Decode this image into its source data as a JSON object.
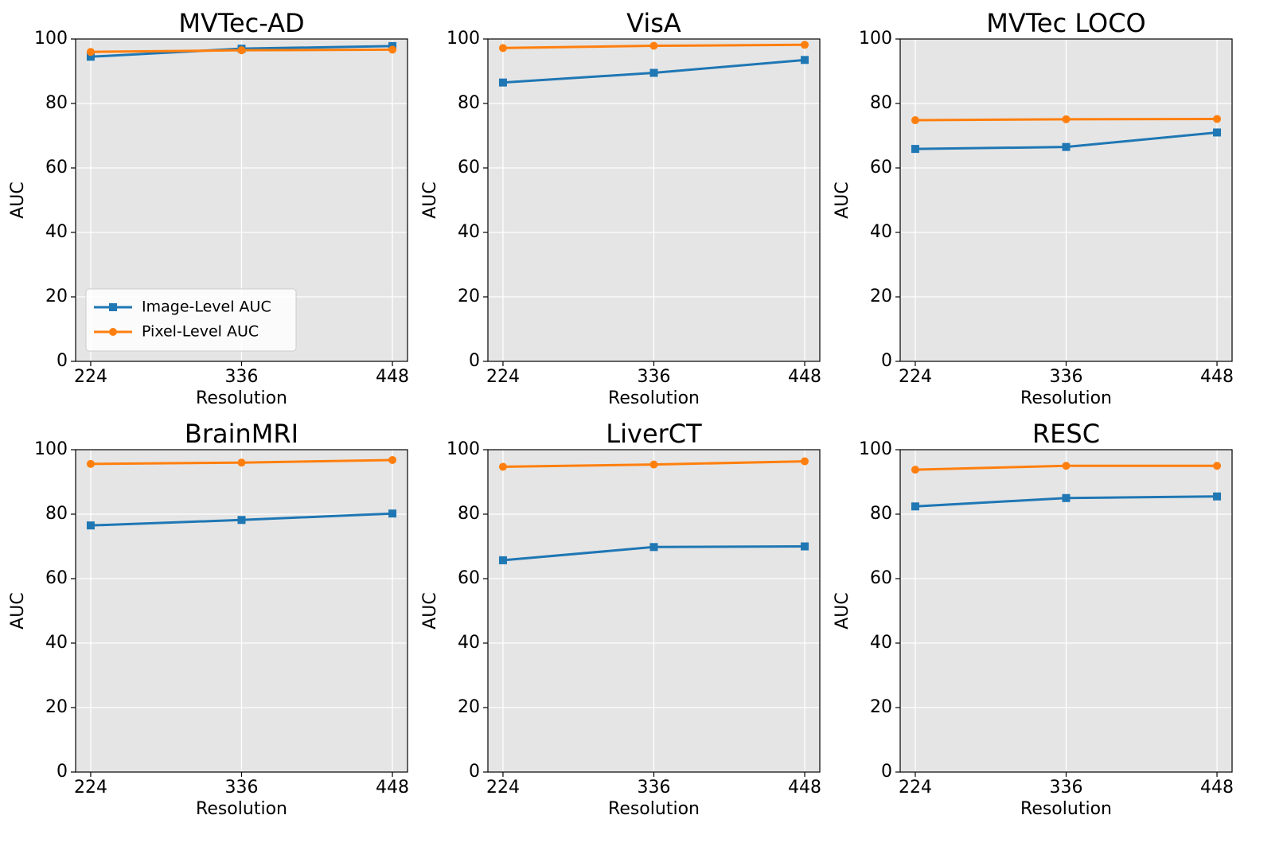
{
  "chart_data": [
    {
      "type": "line",
      "title": "MVTec-AD",
      "xlabel": "Resolution",
      "ylabel": "AUC",
      "x": [
        224,
        336,
        448
      ],
      "xlim": [
        212.8,
        459.2
      ],
      "xticks": [
        224,
        336,
        448
      ],
      "ylim": [
        0,
        100
      ],
      "yticks": [
        0,
        20,
        40,
        60,
        80,
        100
      ],
      "grid": true,
      "legend": "lower left",
      "series": [
        {
          "name": "Image-Level AUC",
          "color": "#1f77b4",
          "marker": "square",
          "values": [
            94.5,
            97.0,
            97.8
          ]
        },
        {
          "name": "Pixel-Level AUC",
          "color": "#ff7f0e",
          "marker": "circle",
          "values": [
            96.0,
            96.5,
            96.7
          ]
        }
      ]
    },
    {
      "type": "line",
      "title": "VisA",
      "xlabel": "Resolution",
      "ylabel": "AUC",
      "x": [
        224,
        336,
        448
      ],
      "xlim": [
        212.8,
        459.2
      ],
      "xticks": [
        224,
        336,
        448
      ],
      "ylim": [
        0,
        100
      ],
      "yticks": [
        0,
        20,
        40,
        60,
        80,
        100
      ],
      "grid": true,
      "series": [
        {
          "color": "#1f77b4",
          "marker": "square",
          "values": [
            86.5,
            89.5,
            93.5
          ]
        },
        {
          "color": "#ff7f0e",
          "marker": "circle",
          "values": [
            97.2,
            97.9,
            98.2
          ]
        }
      ]
    },
    {
      "type": "line",
      "title": "MVTec LOCO",
      "xlabel": "Resolution",
      "ylabel": "AUC",
      "x": [
        224,
        336,
        448
      ],
      "xlim": [
        212.8,
        459.2
      ],
      "xticks": [
        224,
        336,
        448
      ],
      "ylim": [
        0,
        100
      ],
      "yticks": [
        0,
        20,
        40,
        60,
        80,
        100
      ],
      "grid": true,
      "series": [
        {
          "color": "#1f77b4",
          "marker": "square",
          "values": [
            65.9,
            66.5,
            71.0
          ]
        },
        {
          "color": "#ff7f0e",
          "marker": "circle",
          "values": [
            74.8,
            75.1,
            75.2
          ]
        }
      ]
    },
    {
      "type": "line",
      "title": "BrainMRI",
      "xlabel": "Resolution",
      "ylabel": "AUC",
      "x": [
        224,
        336,
        448
      ],
      "xlim": [
        212.8,
        459.2
      ],
      "xticks": [
        224,
        336,
        448
      ],
      "ylim": [
        0,
        100
      ],
      "yticks": [
        0,
        20,
        40,
        60,
        80,
        100
      ],
      "grid": true,
      "series": [
        {
          "color": "#1f77b4",
          "marker": "square",
          "values": [
            76.5,
            78.2,
            80.2
          ]
        },
        {
          "color": "#ff7f0e",
          "marker": "circle",
          "values": [
            95.6,
            96.0,
            96.8
          ]
        }
      ]
    },
    {
      "type": "line",
      "title": "LiverCT",
      "xlabel": "Resolution",
      "ylabel": "AUC",
      "x": [
        224,
        336,
        448
      ],
      "xlim": [
        212.8,
        459.2
      ],
      "xticks": [
        224,
        336,
        448
      ],
      "ylim": [
        0,
        100
      ],
      "yticks": [
        0,
        20,
        40,
        60,
        80,
        100
      ],
      "grid": true,
      "series": [
        {
          "color": "#1f77b4",
          "marker": "square",
          "values": [
            65.7,
            69.8,
            70.0
          ]
        },
        {
          "color": "#ff7f0e",
          "marker": "circle",
          "values": [
            94.7,
            95.4,
            96.4
          ]
        }
      ]
    },
    {
      "type": "line",
      "title": "RESC",
      "xlabel": "Resolution",
      "ylabel": "AUC",
      "x": [
        224,
        336,
        448
      ],
      "xlim": [
        212.8,
        459.2
      ],
      "xticks": [
        224,
        336,
        448
      ],
      "ylim": [
        0,
        100
      ],
      "yticks": [
        0,
        20,
        40,
        60,
        80,
        100
      ],
      "grid": true,
      "series": [
        {
          "color": "#1f77b4",
          "marker": "square",
          "values": [
            82.4,
            85.0,
            85.5
          ]
        },
        {
          "color": "#ff7f0e",
          "marker": "circle",
          "values": [
            93.8,
            95.0,
            95.0
          ]
        }
      ]
    }
  ]
}
